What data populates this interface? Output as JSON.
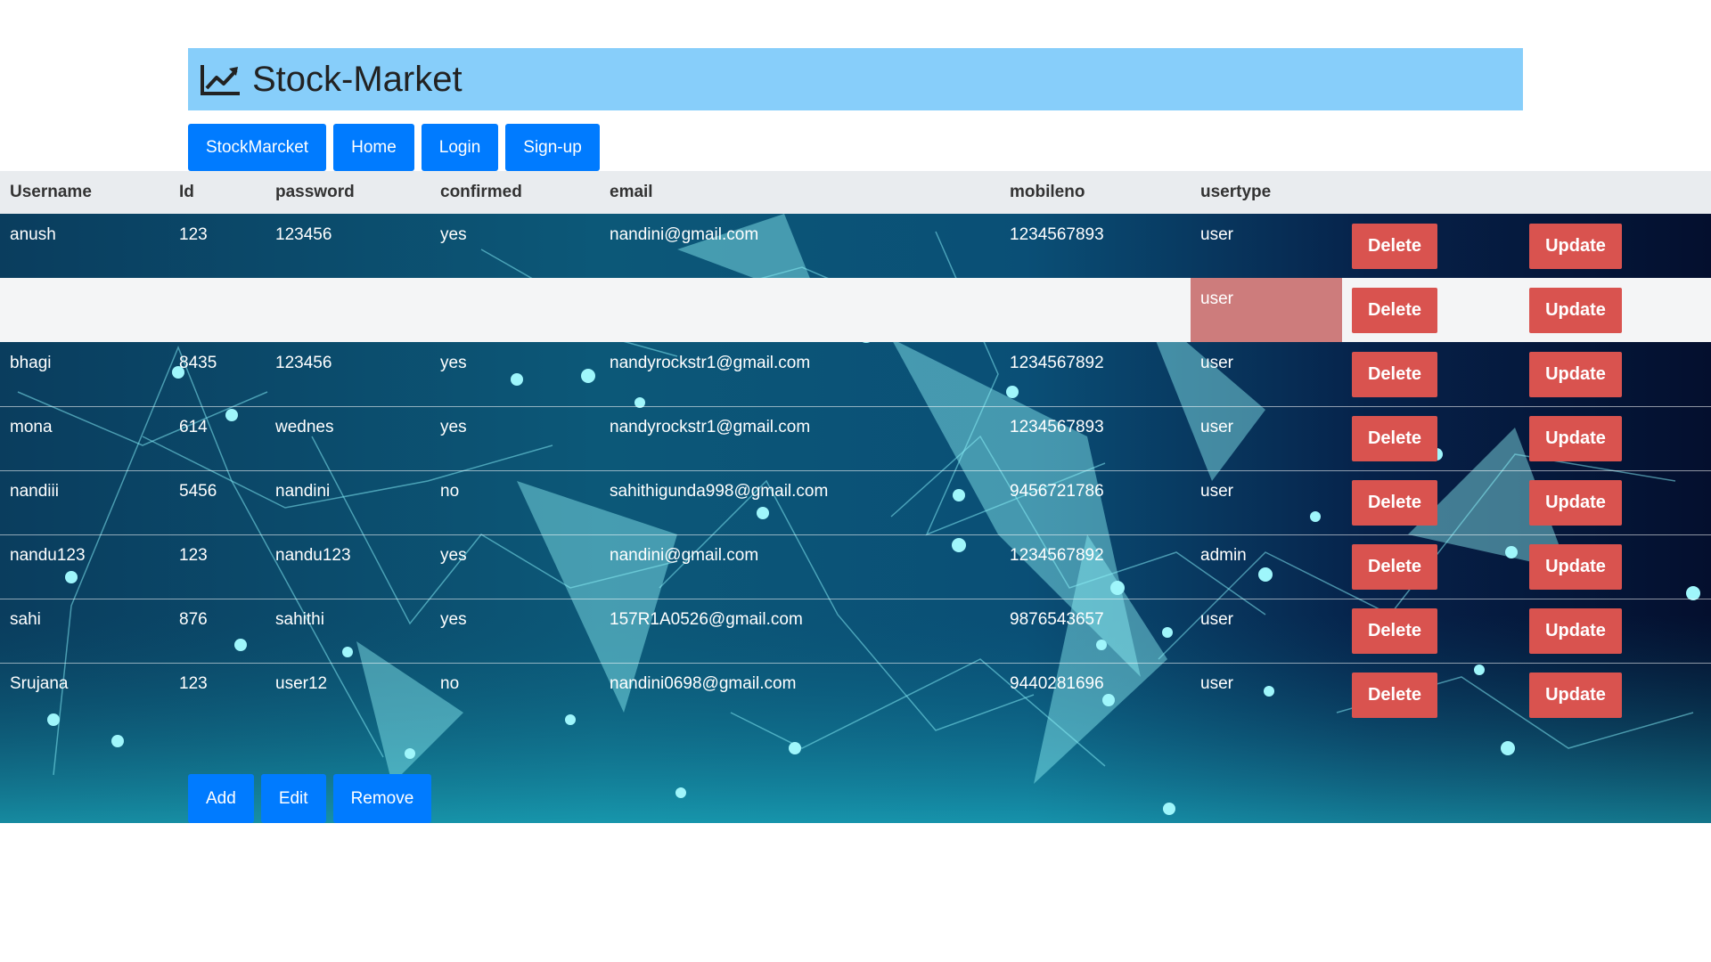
{
  "header": {
    "title": "Stock-Market",
    "logo_icon": "chart-line-icon"
  },
  "nav": {
    "items": [
      "StockMarcket",
      "Home",
      "Login",
      "Sign-up"
    ]
  },
  "table": {
    "columns": [
      "Username",
      "Id",
      "password",
      "confirmed",
      "email",
      "mobileno",
      "usertype"
    ],
    "rows": [
      {
        "username": "anush",
        "id": "123",
        "password": "123456",
        "confirmed": "yes",
        "email": "nandini@gmail.com",
        "mobileno": "1234567893",
        "usertype": "user"
      },
      {
        "username": "",
        "id": "",
        "password": "",
        "confirmed": "",
        "email": "",
        "mobileno": "",
        "usertype": "user"
      },
      {
        "username": "bhagi",
        "id": "8435",
        "password": "123456",
        "confirmed": "yes",
        "email": "nandyrockstr1@gmail.com",
        "mobileno": "1234567892",
        "usertype": "user"
      },
      {
        "username": "mona",
        "id": "614",
        "password": "wednes",
        "confirmed": "yes",
        "email": "nandyrockstr1@gmail.com",
        "mobileno": "1234567893",
        "usertype": "user"
      },
      {
        "username": "nandiii",
        "id": "5456",
        "password": "nandini",
        "confirmed": "no",
        "email": "sahithigunda998@gmail.com",
        "mobileno": "9456721786",
        "usertype": "user"
      },
      {
        "username": "nandu123",
        "id": "123",
        "password": "nandu123",
        "confirmed": "yes",
        "email": "nandini@gmail.com",
        "mobileno": "1234567892",
        "usertype": "admin"
      },
      {
        "username": "sahi",
        "id": "876",
        "password": "sahithi",
        "confirmed": "yes",
        "email": "157R1A0526@gmail.com",
        "mobileno": "9876543657",
        "usertype": "user"
      },
      {
        "username": "Srujana",
        "id": "123",
        "password": "user12",
        "confirmed": "no",
        "email": "nandini0698@gmail.com",
        "mobileno": "9440281696",
        "usertype": "user"
      }
    ],
    "delete_label": "Delete",
    "update_label": "Update"
  },
  "actions": {
    "add_label": "Add",
    "edit_label": "Edit",
    "remove_label": "Remove"
  },
  "colors": {
    "header_bg": "#87cefa",
    "primary": "#007bff",
    "danger": "#d9534f",
    "table_head_bg": "#e9ecef"
  }
}
